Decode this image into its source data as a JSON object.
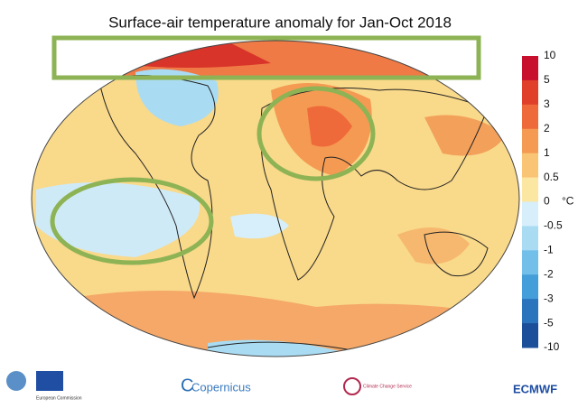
{
  "title": "Surface-air temperature anomaly for Jan-Oct 2018",
  "colorbar": {
    "unit": "°C",
    "labels": [
      10,
      5,
      3,
      2,
      1,
      0.5,
      0,
      -0.5,
      -1,
      -2,
      -3,
      -5,
      -10
    ],
    "colors": [
      "#c8102e",
      "#e0402a",
      "#ef6a3a",
      "#f59a52",
      "#f9c474",
      "#fbe6a2",
      "#d6effa",
      "#a9dcf3",
      "#72c0ea",
      "#449ed9",
      "#2a74bd",
      "#1b4f9a"
    ]
  },
  "logos": {
    "copernicus": "Copernicus",
    "c3s": "Climate Change Service",
    "ecmwf": "ECMWF",
    "ec": "European Commission"
  }
}
